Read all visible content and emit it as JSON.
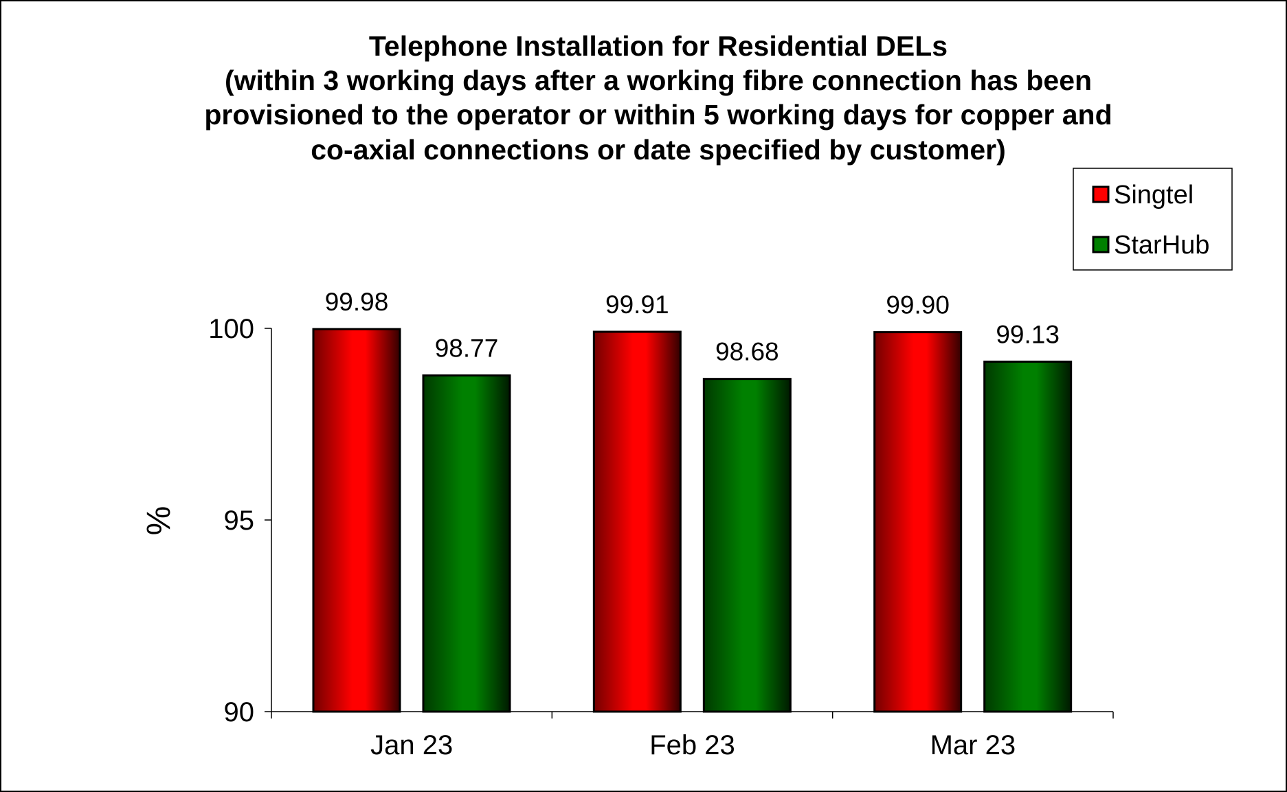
{
  "chart_data": {
    "type": "bar",
    "title_lines": [
      "Telephone Installation for Residential DELs",
      "(within 3 working days after a working fibre connection has been",
      "provisioned to the operator or within 5 working days for copper and",
      "co-axial connections or date specified by customer)"
    ],
    "xlabel": "",
    "ylabel": "%",
    "categories": [
      "Jan 23",
      "Feb 23",
      "Mar 23"
    ],
    "series": [
      {
        "name": "Singtel",
        "color": "#ff0000",
        "values": [
          99.98,
          99.91,
          99.9
        ],
        "labels": [
          "99.98",
          "99.91",
          "99.90"
        ]
      },
      {
        "name": "StarHub",
        "color": "#008000",
        "values": [
          98.77,
          98.68,
          99.13
        ],
        "labels": [
          "98.77",
          "98.68",
          "99.13"
        ]
      }
    ],
    "ylim": [
      90,
      100
    ],
    "yticks": [
      90,
      95,
      100
    ],
    "ytick_labels": [
      "90",
      "95",
      "100"
    ],
    "grid": false,
    "legend_position": "top-right"
  }
}
